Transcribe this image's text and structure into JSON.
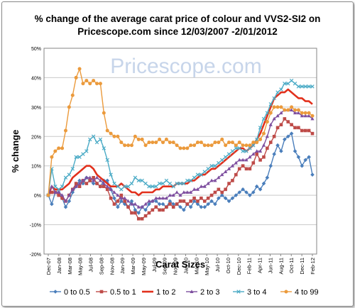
{
  "chart_data": {
    "type": "line",
    "title_lines": [
      "% change of the average carat price of  colour and VVS2-SI2  on",
      "Pricescope.com since 12/03/2007 -2/01/2012"
    ],
    "watermark": "Pricescope.com",
    "xlabel": "Carat Sizes",
    "ylabel": "% change",
    "ylim": [
      -20,
      50
    ],
    "y_ticks": [
      -20,
      -10,
      0,
      10,
      20,
      30,
      40,
      50
    ],
    "y_tick_labels": [
      "-20%",
      "-10%",
      "0%",
      "10%",
      "20%",
      "30%",
      "40%",
      "50%"
    ],
    "x_tick_labels": [
      "Dec-07",
      "Jan-08",
      "Mar-08",
      "May-08",
      "Jul-08",
      "Sep-08",
      "Nov-08",
      "Jan-09",
      "Mar-09",
      "May-09",
      "Jul-09",
      "Sep-09",
      "Nov-09",
      "Jan-10",
      "Mar-10",
      "May-10",
      "Jul-10",
      "Oct-10",
      "Dec-10",
      "Feb-11",
      "Apr-11",
      "Jun-11",
      "Aug-11",
      "Oct-11",
      "Dec-11",
      "Feb-12"
    ],
    "grid": true,
    "legend_position": "bottom",
    "series": [
      {
        "name": "0 to 0.5",
        "color": "#4a7ebb",
        "marker": "diamond",
        "values": [
          0,
          -3,
          1,
          1,
          -1,
          -4,
          -2,
          1,
          3,
          5,
          4,
          6,
          5,
          4,
          4,
          3,
          5,
          5,
          2,
          -1,
          -4,
          -2,
          -3,
          -4,
          -2,
          -5,
          -6,
          -4,
          -5,
          -3,
          -2,
          -2,
          -3,
          -3,
          -4,
          -2,
          -3,
          -3,
          -4,
          -5,
          -3,
          -4,
          -2,
          -3,
          -4,
          -4,
          -3,
          -2,
          -3,
          -1,
          0,
          -1,
          -2,
          -1,
          0,
          1,
          2,
          1,
          0,
          1,
          3,
          2,
          4,
          6,
          10,
          14,
          17,
          15,
          19,
          20,
          21,
          15,
          13,
          10,
          12,
          13,
          7
        ]
      },
      {
        "name": "0.5 to 1",
        "color": "#be4b48",
        "marker": "square",
        "values": [
          0,
          1,
          1,
          0,
          -1,
          -2,
          0,
          2,
          4,
          3,
          5,
          4,
          5,
          6,
          4,
          3,
          3,
          2,
          -1,
          -3,
          -2,
          0,
          -2,
          -4,
          -6,
          -6,
          -8,
          -8,
          -7,
          -6,
          -5,
          -4,
          -5,
          -5,
          -4,
          -3,
          -4,
          -3,
          -2,
          -2,
          -3,
          -2,
          -1,
          -2,
          -1,
          -2,
          -1,
          0,
          1,
          2,
          1,
          2,
          4,
          5,
          7,
          9,
          10,
          9,
          9,
          11,
          14,
          12,
          13,
          16,
          18,
          20,
          23,
          24,
          26,
          25,
          24,
          23,
          23,
          22,
          22,
          22,
          21
        ]
      },
      {
        "name": "1 to 2",
        "color": "#e2301c",
        "marker": "none",
        "values": [
          0,
          3,
          2,
          2,
          2,
          3,
          4,
          6,
          7,
          8,
          9,
          10,
          10,
          9,
          7,
          6,
          5,
          4,
          3,
          3,
          3,
          4,
          3,
          2,
          1,
          1,
          0,
          1,
          1,
          1,
          1,
          2,
          2,
          3,
          3,
          3,
          3,
          4,
          4,
          4,
          4,
          5,
          5,
          6,
          7,
          7,
          8,
          9,
          9,
          10,
          11,
          12,
          13,
          14,
          15,
          16,
          16,
          15,
          16,
          17,
          19,
          21,
          24,
          27,
          30,
          33,
          34,
          35,
          35,
          36,
          35,
          34,
          33,
          33,
          32,
          32,
          31
        ]
      },
      {
        "name": "2 to 3",
        "color": "#7e4f9f",
        "marker": "triangle",
        "values": [
          0,
          3,
          1,
          1,
          0,
          -2,
          0,
          2,
          3,
          4,
          5,
          6,
          6,
          5,
          6,
          5,
          4,
          3,
          2,
          1,
          0,
          -1,
          -1,
          -2,
          -3,
          -3,
          -4,
          -4,
          -3,
          -2,
          -2,
          -1,
          -1,
          -1,
          -1,
          0,
          0,
          1,
          0,
          1,
          1,
          1,
          2,
          2,
          3,
          3,
          4,
          5,
          5,
          6,
          7,
          8,
          9,
          10,
          11,
          12,
          12,
          12,
          13,
          14,
          15,
          15,
          17,
          20,
          24,
          26,
          27,
          28,
          29,
          29,
          29,
          28,
          28,
          27,
          27,
          27,
          26
        ]
      },
      {
        "name": "3 to 4",
        "color": "#4babc6",
        "marker": "x",
        "values": [
          0,
          9,
          3,
          2,
          3,
          6,
          7,
          9,
          13,
          13,
          14,
          15,
          19,
          20,
          18,
          19,
          16,
          12,
          7,
          4,
          3,
          2,
          3,
          3,
          4,
          6,
          5,
          5,
          4,
          3,
          3,
          3,
          4,
          4,
          5,
          4,
          3,
          4,
          4,
          4,
          5,
          5,
          6,
          7,
          7,
          8,
          9,
          10,
          10,
          11,
          12,
          13,
          14,
          15,
          16,
          16,
          15,
          15,
          16,
          17,
          19,
          23,
          26,
          28,
          31,
          33,
          35,
          36,
          38,
          38,
          39,
          38,
          37,
          37,
          37,
          37,
          37
        ]
      },
      {
        "name": "4 to 99",
        "color": "#eb9a3c",
        "marker": "circle",
        "values": [
          0,
          13,
          15,
          16,
          16,
          22,
          30,
          34,
          40,
          43,
          38,
          39,
          38,
          39,
          38,
          38,
          28,
          22,
          21,
          20,
          20,
          18,
          17,
          17,
          17,
          20,
          19,
          19,
          17,
          18,
          18,
          18,
          19,
          18,
          19,
          18,
          18,
          17,
          16,
          16,
          16,
          17,
          17,
          18,
          18,
          17,
          17,
          17,
          18,
          18,
          19,
          17,
          18,
          18,
          17,
          18,
          17,
          17,
          17,
          18,
          18,
          19,
          21,
          25,
          28,
          30,
          30,
          30,
          29,
          29,
          30,
          29,
          29,
          28,
          28,
          28,
          27
        ]
      }
    ]
  }
}
